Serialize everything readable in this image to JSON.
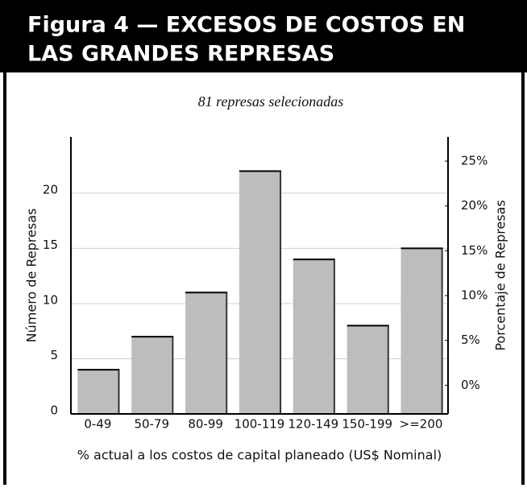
{
  "chart_data": {
    "type": "bar",
    "title": [
      "Figura 4 — EXCESOS DE COSTOS EN",
      "LAS GRANDES REPRESAS"
    ],
    "subtitle": "81 represas selecionadas",
    "x_label": "% actual a los costos de capital planeado (US$ Nominal)",
    "y_label": "Número de Represas",
    "y2_label": "Porcentaje de Represas",
    "categories": [
      "0-49",
      "50-79",
      "80-99",
      "100-119",
      "120-149",
      "150-199",
      ">=200"
    ],
    "values": [
      4,
      7,
      11,
      22,
      14,
      8,
      15
    ],
    "color": "#bdbdbd",
    "ylim": [
      0,
      25.1
    ],
    "yticks": [
      0,
      5,
      10,
      15,
      20
    ],
    "y2lim": [
      -3.2,
      27.7
    ],
    "y2ticks": [
      {
        "value": 0,
        "label": "0%"
      },
      {
        "value": 5,
        "label": "5%"
      },
      {
        "value": 10,
        "label": "10%"
      },
      {
        "value": 15,
        "label": "15%"
      },
      {
        "value": 20,
        "label": "20%"
      },
      {
        "value": 25,
        "label": "25%"
      }
    ],
    "grid": true
  }
}
